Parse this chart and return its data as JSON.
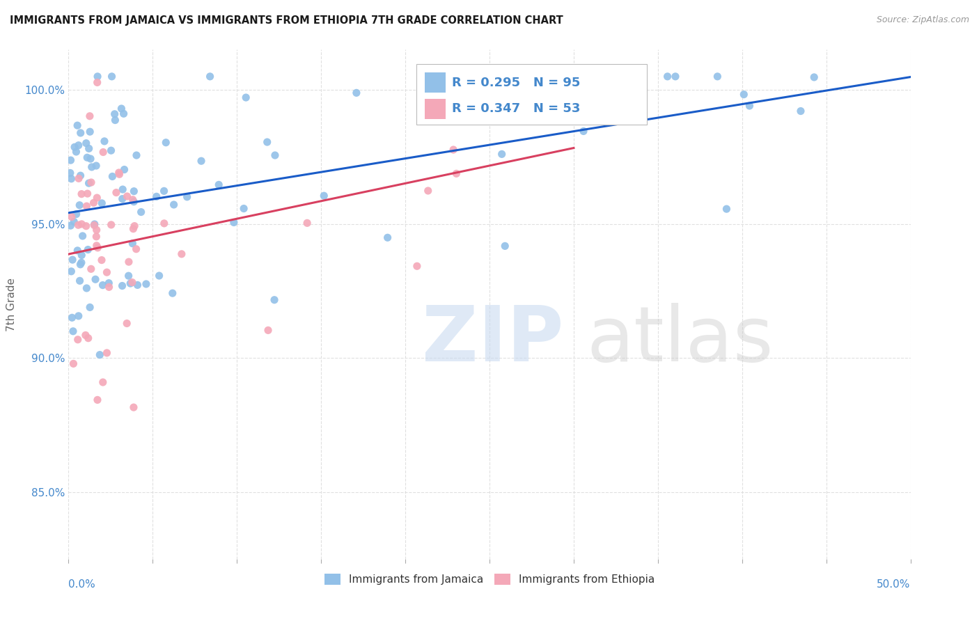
{
  "title": "IMMIGRANTS FROM JAMAICA VS IMMIGRANTS FROM ETHIOPIA 7TH GRADE CORRELATION CHART",
  "source": "Source: ZipAtlas.com",
  "ylabel": "7th Grade",
  "xlim": [
    0.0,
    50.0
  ],
  "ylim": [
    82.5,
    101.5
  ],
  "y_tick_vals": [
    85.0,
    90.0,
    95.0,
    100.0
  ],
  "y_tick_labels": [
    "85.0%",
    "90.0%",
    "95.0%",
    "100.0%"
  ],
  "jamaica_color": "#92c0e8",
  "ethiopia_color": "#f4a8b8",
  "jamaica_line_color": "#1a5cc8",
  "ethiopia_line_color": "#d84060",
  "legend_R_jamaica": "R = 0.295",
  "legend_N_jamaica": "N = 95",
  "legend_R_ethiopia": "R = 0.347",
  "legend_N_ethiopia": "N = 53",
  "axis_label_color": "#4488cc",
  "title_color": "#1a1a1a",
  "grid_color": "#dddddd",
  "marker_size": 65,
  "jamaica_seed": 42,
  "ethiopia_seed": 123,
  "n_jamaica": 95,
  "n_ethiopia": 53
}
